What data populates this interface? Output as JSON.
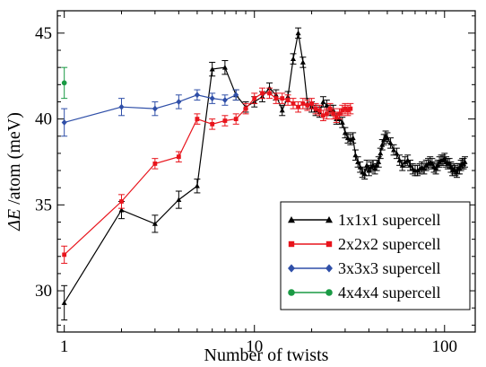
{
  "chart_data": {
    "type": "scatter",
    "title": "",
    "xlabel": "Number of twists",
    "ylabel_symbol": "ΔE",
    "ylabel_rest": " /atom (meV)",
    "x_scale": "log",
    "xlim": [
      0.92,
      145
    ],
    "ylim": [
      27.6,
      46.3
    ],
    "x_ticks": [
      1,
      10,
      100
    ],
    "x_ticklabels": [
      "1",
      "10",
      "100"
    ],
    "y_ticks": [
      30,
      35,
      40,
      45
    ],
    "y_ticklabels": [
      "30",
      "35",
      "40",
      "45"
    ],
    "grid": false,
    "legend_position": "lower-right",
    "series": [
      {
        "name": "1x1x1 supercell",
        "color": "#000000",
        "marker": "triangle",
        "x": [
          1,
          2,
          3,
          4,
          5,
          6,
          7,
          8,
          9,
          10,
          11,
          12,
          13,
          14,
          15,
          16,
          17,
          18,
          19,
          20,
          21,
          22,
          23,
          24,
          25,
          26,
          27,
          28,
          29,
          30,
          31,
          32,
          33,
          34,
          35,
          36,
          37,
          38,
          39,
          40,
          41,
          42,
          43,
          44,
          45,
          46,
          47,
          48,
          49,
          50,
          52,
          54,
          56,
          58,
          60,
          62,
          64,
          66,
          68,
          70,
          72,
          74,
          76,
          78,
          80,
          82,
          84,
          86,
          88,
          90,
          92,
          94,
          96,
          98,
          100,
          102,
          104,
          106,
          108,
          110,
          112,
          114,
          116,
          118,
          120,
          122,
          124,
          126,
          128
        ],
        "y": [
          29.3,
          34.7,
          33.9,
          35.3,
          36.1,
          42.9,
          43.0,
          41.4,
          40.7,
          41.0,
          41.3,
          41.8,
          41.4,
          40.5,
          41.3,
          43.5,
          45.0,
          43.3,
          40.9,
          40.7,
          40.5,
          40.4,
          41.0,
          40.8,
          40.5,
          40.5,
          40.0,
          40.0,
          39.8,
          39.2,
          38.9,
          38.8,
          38.9,
          37.9,
          37.5,
          37.2,
          36.9,
          36.8,
          37.3,
          37.0,
          37.2,
          37.3,
          37.1,
          37.3,
          37.5,
          38.0,
          38.5,
          38.8,
          39.0,
          38.9,
          38.6,
          38.2,
          38.0,
          37.6,
          37.3,
          37.5,
          37.6,
          37.3,
          37.1,
          37.0,
          37.0,
          37.1,
          37.2,
          37.1,
          37.3,
          37.4,
          37.5,
          37.4,
          37.2,
          37.1,
          37.3,
          37.5,
          37.6,
          37.6,
          37.7,
          37.5,
          37.4,
          37.4,
          37.2,
          37.0,
          37.1,
          37.0,
          36.9,
          37.1,
          37.1,
          37.3,
          37.4,
          37.4,
          37.5
        ],
        "err": [
          1.0,
          0.5,
          0.5,
          0.5,
          0.4,
          0.4,
          0.4,
          0.3,
          0.3,
          0.3,
          0.3,
          0.3,
          0.3,
          0.3,
          0.3,
          0.3,
          0.3,
          0.3,
          0.3,
          0.3,
          0.3,
          0.3,
          0.3,
          0.3,
          0.3,
          0.3,
          0.3,
          0.3,
          0.3,
          0.3,
          0.3,
          0.3,
          0.3,
          0.3,
          0.3,
          0.3,
          0.3,
          0.3,
          0.3,
          0.3,
          0.3,
          0.3,
          0.3,
          0.3,
          0.3,
          0.3,
          0.3,
          0.3,
          0.3,
          0.3,
          0.3,
          0.3,
          0.3,
          0.3,
          0.3,
          0.3,
          0.3,
          0.3,
          0.3,
          0.3,
          0.3,
          0.3,
          0.3,
          0.3,
          0.3,
          0.3,
          0.3,
          0.3,
          0.3,
          0.3,
          0.3,
          0.3,
          0.3,
          0.3,
          0.3,
          0.3,
          0.3,
          0.3,
          0.3,
          0.3,
          0.3,
          0.3,
          0.3,
          0.3,
          0.3,
          0.3,
          0.3,
          0.3,
          0.3
        ]
      },
      {
        "name": "2x2x2 supercell",
        "color": "#e8141c",
        "marker": "square",
        "x": [
          1,
          2,
          3,
          4,
          5,
          6,
          7,
          8,
          9,
          10,
          11,
          12,
          13,
          14,
          15,
          16,
          17,
          18,
          19,
          20,
          21,
          22,
          23,
          24,
          25,
          26,
          27,
          28,
          29,
          30,
          31,
          32
        ],
        "y": [
          32.1,
          35.2,
          37.4,
          37.8,
          40.0,
          39.7,
          39.9,
          40.0,
          40.6,
          41.2,
          41.5,
          41.5,
          41.2,
          41.2,
          41.1,
          40.9,
          40.7,
          40.9,
          40.8,
          40.9,
          40.6,
          40.5,
          40.2,
          40.3,
          40.6,
          40.3,
          40.1,
          40.3,
          40.5,
          40.6,
          40.5,
          40.6
        ],
        "err": [
          0.5,
          0.4,
          0.3,
          0.3,
          0.3,
          0.3,
          0.3,
          0.3,
          0.3,
          0.3,
          0.3,
          0.3,
          0.3,
          0.3,
          0.3,
          0.3,
          0.3,
          0.3,
          0.3,
          0.3,
          0.3,
          0.3,
          0.3,
          0.3,
          0.3,
          0.3,
          0.3,
          0.3,
          0.3,
          0.3,
          0.3,
          0.3
        ]
      },
      {
        "name": "3x3x3 supercell",
        "color": "#2f4fa8",
        "marker": "diamond",
        "x": [
          1,
          2,
          3,
          4,
          5,
          6,
          7,
          8
        ],
        "y": [
          39.8,
          40.7,
          40.6,
          41.0,
          41.4,
          41.2,
          41.1,
          41.4
        ],
        "err": [
          0.8,
          0.5,
          0.4,
          0.4,
          0.3,
          0.3,
          0.3,
          0.3
        ]
      },
      {
        "name": "4x4x4 supercell",
        "color": "#1a9a44",
        "marker": "circle",
        "x": [
          1
        ],
        "y": [
          42.1
        ],
        "err": [
          0.9
        ]
      }
    ]
  }
}
